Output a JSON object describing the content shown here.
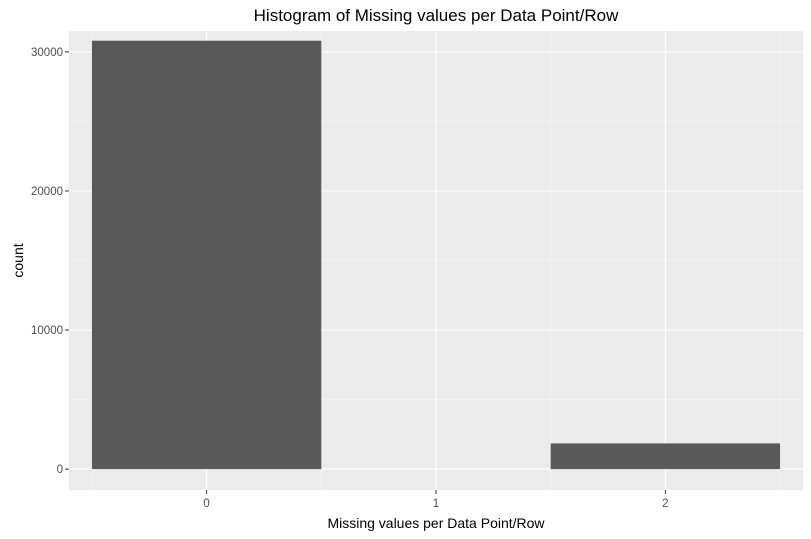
{
  "chart_data": {
    "type": "bar",
    "title": "Histogram of Missing values per Data Point/Row",
    "xlabel": "Missing values per Data Point/Row",
    "ylabel": "count",
    "categories": [
      "0",
      "1",
      "2"
    ],
    "values": [
      30800,
      0,
      1850
    ],
    "xlim": [
      -0.6,
      2.6
    ],
    "ylim": [
      0,
      31500
    ],
    "yticks": [
      0,
      10000,
      20000,
      30000
    ],
    "ytick_labels": [
      "0",
      "10000",
      "20000",
      "30000"
    ],
    "xticks": [
      0,
      1,
      2
    ],
    "xtick_labels": [
      "0",
      "1",
      "2"
    ],
    "grid": true,
    "legend": "none",
    "colors": {
      "bar": "#595959",
      "panel_background": "#ebebeb",
      "grid_major": "#ffffff",
      "grid_minor": "#f5f5f5",
      "tick_label": "#4d4d4d",
      "tick": "#333333",
      "text": "#000000"
    }
  }
}
